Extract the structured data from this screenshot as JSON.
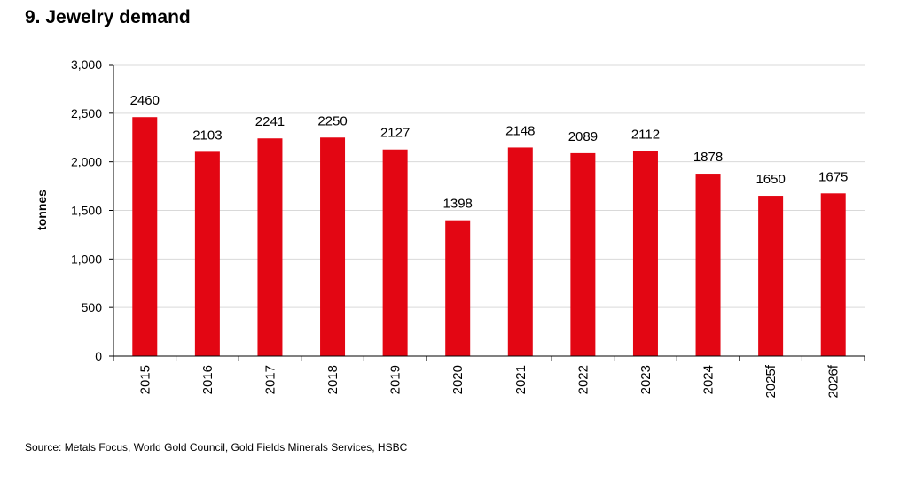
{
  "title": "9. Jewelry demand",
  "source": "Source: Metals Focus, World Gold Council, Gold Fields Minerals Services, HSBC",
  "chart_data": {
    "type": "bar",
    "categories": [
      "2015",
      "2016",
      "2017",
      "2018",
      "2019",
      "2020",
      "2021",
      "2022",
      "2023",
      "2024",
      "2025f",
      "2026f"
    ],
    "values": [
      2460,
      2103,
      2241,
      2250,
      2127,
      1398,
      2148,
      2089,
      2112,
      1878,
      1650,
      1675
    ],
    "data_labels": [
      "2460",
      "2103",
      "2241",
      "2250",
      "2127",
      "1398",
      "2148",
      "2089",
      "2112",
      "1878",
      "1650",
      "1675"
    ],
    "title": "9. Jewelry demand",
    "xlabel": "",
    "ylabel": "tonnes",
    "ylim": [
      0,
      3000
    ],
    "yticks": [
      0,
      500,
      1000,
      1500,
      2000,
      2500,
      3000
    ],
    "ytick_labels": [
      "0",
      "500",
      "1,000",
      "1,500",
      "2,000",
      "2,500",
      "3,000"
    ],
    "grid": true,
    "legend": "none",
    "bar_color": "#e30613"
  }
}
